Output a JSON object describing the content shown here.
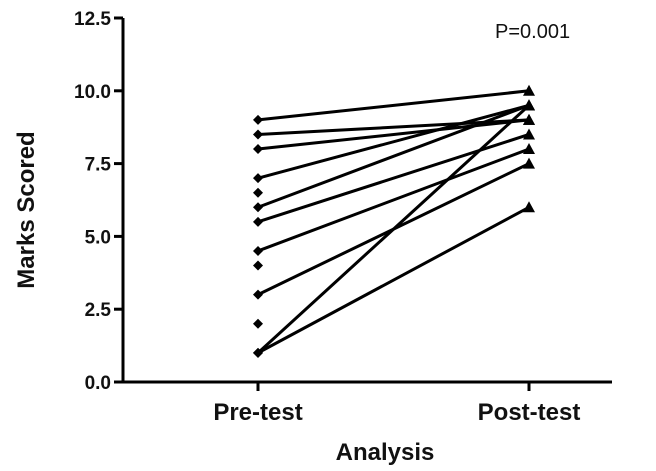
{
  "chart_data": {
    "type": "line",
    "categories": [
      "Pre-test",
      "Post-test"
    ],
    "xlabel": "Analysis",
    "ylabel": "Marks Scored",
    "ylim": [
      0,
      12.5
    ],
    "yticks": [
      "0.0",
      "2.5",
      "5.0",
      "7.5",
      "10.0",
      "12.5"
    ],
    "annotation": "P=0.001",
    "grid": false,
    "pairs": [
      {
        "pre": 9.0,
        "post": 10.0
      },
      {
        "pre": 8.5,
        "post": 9.0
      },
      {
        "pre": 8.0,
        "post": 9.0
      },
      {
        "pre": 7.0,
        "post": 9.5
      },
      {
        "pre": 6.0,
        "post": 9.5
      },
      {
        "pre": 5.5,
        "post": 8.5
      },
      {
        "pre": 4.5,
        "post": 8.0
      },
      {
        "pre": 3.0,
        "post": 7.5
      },
      {
        "pre": 1.0,
        "post": 9.5
      },
      {
        "pre": 1.0,
        "post": 6.0
      }
    ],
    "unpaired_pre": [
      6.5,
      4.0,
      2.0
    ]
  }
}
